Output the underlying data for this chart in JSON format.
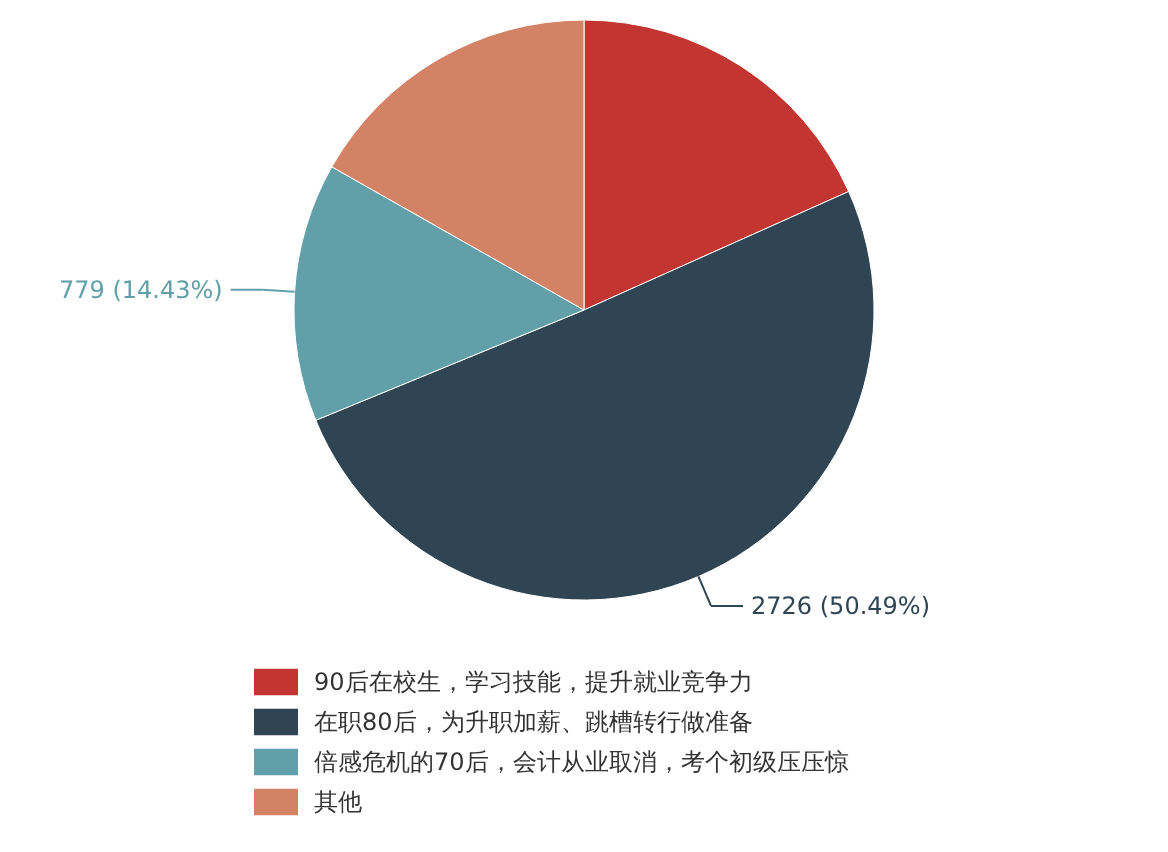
{
  "chart_data": {
    "type": "pie",
    "categories": [
      "90后在校生，学习技能，提升就业竞争力",
      "在职80后，为升职加薪、跳槽转行做准备",
      "倍感危机的70后，会计从业取消，考个初级压压惊",
      "其他"
    ],
    "values": [
      988,
      2726,
      779,
      906
    ],
    "colors": [
      "#c23531",
      "#2f4554",
      "#61a0a8",
      "#d48265"
    ],
    "value_labels": [
      null,
      "2726 (50.49%)",
      "779 (14.43%)",
      null
    ],
    "legend": "bottom"
  }
}
